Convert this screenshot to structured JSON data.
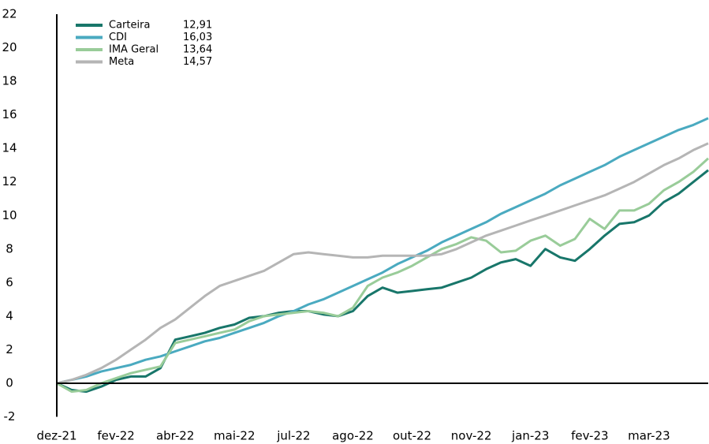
{
  "chart_data": {
    "type": "line",
    "categories": [
      "dez-21",
      null,
      null,
      null,
      "fev-22",
      null,
      null,
      null,
      "abr-22",
      null,
      null,
      null,
      "mai-22",
      null,
      null,
      null,
      "jul-22",
      null,
      null,
      null,
      "ago-22",
      null,
      null,
      null,
      "out-22",
      null,
      null,
      null,
      "nov-22",
      null,
      null,
      null,
      "jan-23",
      null,
      null,
      null,
      "fev-23",
      null,
      null,
      null,
      "mar-23",
      null,
      null,
      null,
      null
    ],
    "series": [
      {
        "name": "Carteira",
        "color": "#18766a",
        "legend_value": {
          "value": 12.91,
          "label": "12,91"
        },
        "values": [
          0,
          -0.4,
          -0.5,
          -0.2,
          0.2,
          0.4,
          0.4,
          0.9,
          2.6,
          2.8,
          3.0,
          3.3,
          3.5,
          3.9,
          4.0,
          4.2,
          4.3,
          4.3,
          4.1,
          4.0,
          4.3,
          5.2,
          5.7,
          5.4,
          5.5,
          5.6,
          5.7,
          6.0,
          6.3,
          6.8,
          7.2,
          7.4,
          7.0,
          8.0,
          7.5,
          7.3,
          8.0,
          8.8,
          9.5,
          9.6,
          10.0,
          10.8,
          11.3,
          12.0,
          12.7
        ]
      },
      {
        "name": "CDI",
        "color": "#4aaac0",
        "legend_value": {
          "value": 16.03,
          "label": "16,03"
        },
        "values": [
          0,
          0.2,
          0.4,
          0.7,
          0.9,
          1.1,
          1.4,
          1.6,
          1.9,
          2.2,
          2.5,
          2.7,
          3.0,
          3.3,
          3.6,
          4.0,
          4.3,
          4.7,
          5.0,
          5.4,
          5.8,
          6.2,
          6.6,
          7.1,
          7.5,
          7.9,
          8.4,
          8.8,
          9.2,
          9.6,
          10.1,
          10.5,
          10.9,
          11.3,
          11.8,
          12.2,
          12.6,
          13.0,
          13.5,
          13.9,
          14.3,
          14.7,
          15.1,
          15.4,
          15.8
        ]
      },
      {
        "name": "IMA Geral",
        "color": "#99cc99",
        "legend_value": {
          "value": 13.64,
          "label": "13,64"
        },
        "values": [
          0,
          -0.5,
          -0.4,
          0,
          0.3,
          0.6,
          0.8,
          1.0,
          2.4,
          2.6,
          2.8,
          3.0,
          3.2,
          3.7,
          4.0,
          4.1,
          4.2,
          4.3,
          4.2,
          4.0,
          4.5,
          5.8,
          6.3,
          6.6,
          7.0,
          7.5,
          8.0,
          8.3,
          8.7,
          8.5,
          7.8,
          7.9,
          8.5,
          8.8,
          8.2,
          8.6,
          9.8,
          9.2,
          10.3,
          10.3,
          10.7,
          11.5,
          12.0,
          12.6,
          13.4
        ]
      },
      {
        "name": "Meta",
        "color": "#b5b5b5",
        "legend_value": {
          "value": 14.57,
          "label": "14,57"
        },
        "values": [
          0,
          0.2,
          0.5,
          0.9,
          1.4,
          2.0,
          2.6,
          3.3,
          3.8,
          4.5,
          5.2,
          5.8,
          6.1,
          6.4,
          6.7,
          7.2,
          7.7,
          7.8,
          7.7,
          7.6,
          7.5,
          7.5,
          7.6,
          7.6,
          7.6,
          7.6,
          7.7,
          8.0,
          8.4,
          8.8,
          9.1,
          9.4,
          9.7,
          10.0,
          10.3,
          10.6,
          10.9,
          11.2,
          11.6,
          12.0,
          12.5,
          13.0,
          13.4,
          13.9,
          14.3
        ]
      }
    ],
    "ylim": [
      -2,
      22
    ],
    "yticks": [
      -2,
      0,
      2,
      4,
      6,
      8,
      10,
      12,
      14,
      16,
      18,
      20,
      22
    ],
    "grid": false,
    "legend": "upper left"
  }
}
